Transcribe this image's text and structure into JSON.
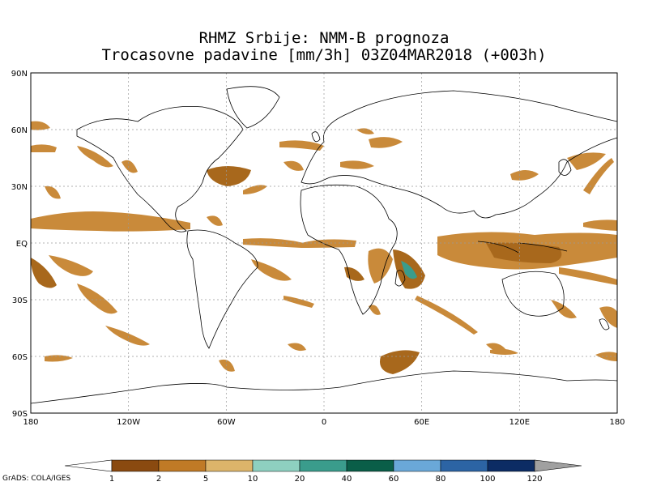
{
  "title_line1": "RHMZ Srbije: NMM-B prognoza",
  "title_line2": "Trocasovne padavine [mm/3h] 03Z04MAR2018 (+003h)",
  "x_ticks": [
    "180",
    "120W",
    "60W",
    "0",
    "60E",
    "120E",
    "180"
  ],
  "y_ticks": [
    "90N",
    "60N",
    "30N",
    "EQ",
    "30S",
    "60S",
    "90S"
  ],
  "colorbar": {
    "labels": [
      "1",
      "2",
      "5",
      "10",
      "20",
      "40",
      "60",
      "80",
      "100",
      "120"
    ],
    "colors": [
      "#8a4a10",
      "#c07a26",
      "#dcb46a",
      "#8ed0c0",
      "#3a9c8c",
      "#0a5e48",
      "#6aa8d8",
      "#2c64a4",
      "#0c2c64"
    ],
    "low_arrow_color": "#ffffff",
    "high_arrow_color": "#a0a0a0"
  },
  "credit": "GrADS: COLA/IGES",
  "precip_colors": {
    "light": "#c98a3a",
    "medium": "#a8681c",
    "heavy": "#3a9c8c"
  }
}
